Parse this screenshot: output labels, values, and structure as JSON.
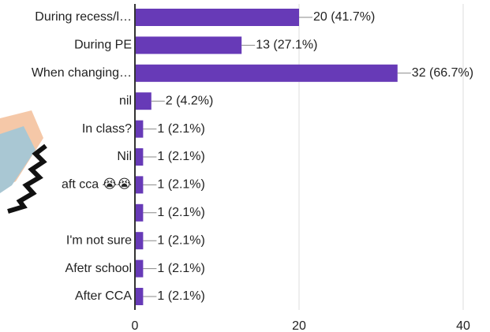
{
  "chart_data": {
    "type": "bar",
    "orientation": "horizontal",
    "categories": [
      "During recess/l…",
      "During PE",
      "When changing…",
      "nil",
      "In class?",
      "Nil",
      "aft cca 😭😭",
      null,
      "I'm not sure",
      "Afetr school",
      "After CCA"
    ],
    "values": [
      20,
      13,
      32,
      2,
      1,
      1,
      1,
      1,
      1,
      1,
      1
    ],
    "value_labels": [
      "20 (41.7%)",
      "13 (27.1%)",
      "32 (66.7%)",
      "2 (4.2%)",
      "1 (2.1%)",
      "1 (2.1%)",
      "1 (2.1%)",
      "1 (2.1%)",
      "1 (2.1%)",
      "1 (2.1%)",
      "1 (2.1%)"
    ],
    "color": "#673ab7",
    "xlim": [
      0,
      40
    ],
    "xticks": [
      0,
      20,
      40
    ],
    "grid": true
  }
}
